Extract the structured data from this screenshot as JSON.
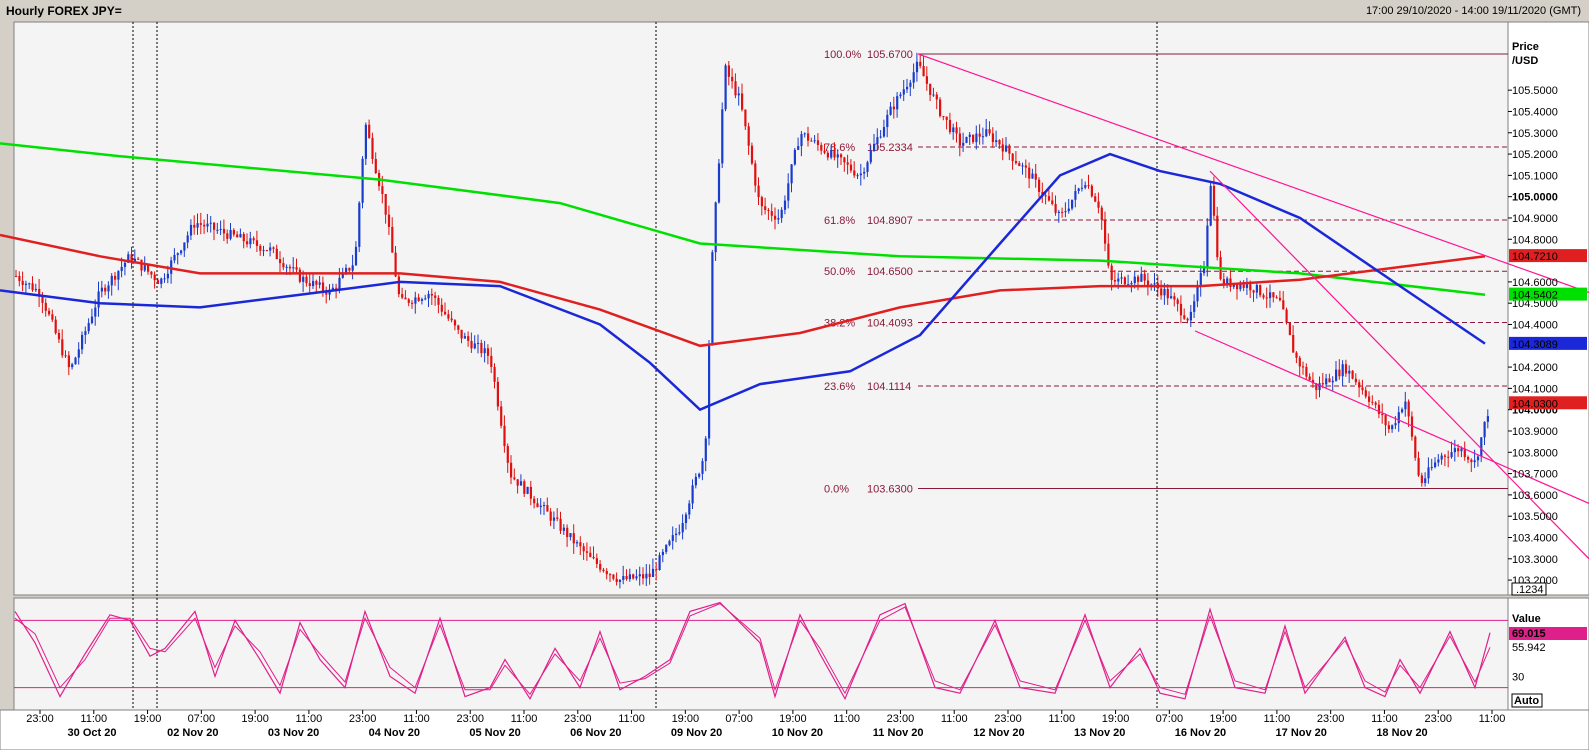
{
  "window": {
    "title": "Hourly FOREX JPY=",
    "range": "17:00 29/10/2020 - 14:00 19/11/2020 (GMT)"
  },
  "colors": {
    "background": "#f4f4f4",
    "up_candle": "#1a3ccc",
    "down_candle": "#e01010",
    "ma_green": "#00e000",
    "ma_red": "#e02020",
    "ma_blue": "#1a28d8",
    "fib": "#8b1a3a",
    "channel": "#ff1493",
    "stoch": "#e0208a"
  },
  "chart_data": [
    {
      "type": "candlestick",
      "axis_label": [
        "Price",
        "/USD"
      ],
      "ylim": [
        103.13,
        105.82
      ],
      "y_ticks": [
        "103.2000",
        "103.3000",
        "103.4000",
        "103.5000",
        "103.6000",
        "103.7000",
        "103.8000",
        "103.9000",
        "104.0000",
        "104.1000",
        "104.2000",
        "104.4000",
        "104.5000",
        "104.6000",
        "104.8000",
        "104.9000",
        "105.0000",
        "105.1000",
        "105.2000",
        "105.3000",
        "105.4000",
        "105.5000"
      ],
      "x_ticks": [
        "23:00",
        "11:00",
        "19:00",
        "07:00",
        "19:00",
        "11:00",
        "23:00",
        "11:00",
        "23:00",
        "11:00",
        "23:00",
        "11:00",
        "19:00",
        "07:00",
        "19:00",
        "11:00",
        "23:00",
        "11:00",
        "23:00",
        "11:00",
        "19:00",
        "07:00",
        "19:00",
        "11:00",
        "23:00",
        "11:00",
        "23:00",
        "11:00"
      ],
      "date_labels": [
        "30 Oct 20",
        "02 Nov 20",
        "03 Nov 20",
        "04 Nov 20",
        "05 Nov 20",
        "06 Nov 20",
        "09 Nov 20",
        "10 Nov 20",
        "11 Nov 20",
        "12 Nov 20",
        "13 Nov 20",
        "16 Nov 20",
        "17 Nov 20",
        "18 Nov 20"
      ],
      "fibonacci": [
        {
          "label": "100.0%",
          "value": "105.6700",
          "y": 105.67
        },
        {
          "label": "78.6%",
          "value": "105.2334",
          "y": 105.2334
        },
        {
          "label": "61.8%",
          "value": "104.8907",
          "y": 104.8907
        },
        {
          "label": "50.0%",
          "value": "104.6500",
          "y": 104.65
        },
        {
          "label": "38.2%",
          "value": "104.4093",
          "y": 104.4093
        },
        {
          "label": "23.6%",
          "value": "104.1114",
          "y": 104.1114
        },
        {
          "label": "0.0%",
          "value": "103.6300",
          "y": 103.63
        }
      ],
      "price_tags": [
        {
          "text": "104.7210",
          "y": 104.721,
          "color": "#e02020"
        },
        {
          "text": "104.5402",
          "y": 104.5402,
          "color": "#00e000"
        },
        {
          "text": "104.3089",
          "y": 104.3089,
          "color": "#1a28d8"
        },
        {
          "text": "104.0300",
          "y": 104.03,
          "color": "#e02020"
        }
      ],
      "scale_button": ".1234",
      "moving_averages": [
        {
          "color": "green",
          "points": [
            [
              0,
              105.25
            ],
            [
              120,
              105.19
            ],
            [
              380,
              105.08
            ],
            [
              560,
              104.97
            ],
            [
              700,
              104.78
            ],
            [
              900,
              104.72
            ],
            [
              1100,
              104.7
            ],
            [
              1300,
              104.64
            ],
            [
              1485,
              104.54
            ]
          ]
        },
        {
          "color": "red",
          "points": [
            [
              0,
              104.82
            ],
            [
              100,
              104.72
            ],
            [
              200,
              104.64
            ],
            [
              300,
              104.64
            ],
            [
              400,
              104.64
            ],
            [
              500,
              104.6
            ],
            [
              600,
              104.47
            ],
            [
              700,
              104.3
            ],
            [
              800,
              104.36
            ],
            [
              900,
              104.48
            ],
            [
              1000,
              104.56
            ],
            [
              1100,
              104.58
            ],
            [
              1200,
              104.58
            ],
            [
              1300,
              104.61
            ],
            [
              1400,
              104.67
            ],
            [
              1485,
              104.72
            ]
          ]
        },
        {
          "color": "blue",
          "points": [
            [
              0,
              104.56
            ],
            [
              100,
              104.5
            ],
            [
              200,
              104.48
            ],
            [
              300,
              104.54
            ],
            [
              400,
              104.6
            ],
            [
              500,
              104.58
            ],
            [
              600,
              104.4
            ],
            [
              650,
              104.22
            ],
            [
              700,
              104.0
            ],
            [
              760,
              104.12
            ],
            [
              850,
              104.18
            ],
            [
              920,
              104.35
            ],
            [
              1000,
              104.78
            ],
            [
              1060,
              105.1
            ],
            [
              1110,
              105.2
            ],
            [
              1160,
              105.12
            ],
            [
              1220,
              105.06
            ],
            [
              1300,
              104.9
            ],
            [
              1400,
              104.58
            ],
            [
              1485,
              104.31
            ]
          ]
        }
      ],
      "channel_lines": [
        {
          "from": [
            918,
            105.67
          ],
          "to": [
            1589,
            104.55
          ]
        },
        {
          "from": [
            1195,
            104.37
          ],
          "to": [
            1589,
            103.56
          ]
        },
        {
          "from": [
            1210,
            105.12
          ],
          "to": [
            1589,
            103.3
          ]
        }
      ],
      "anchors": [
        [
          0,
          104.68
        ],
        [
          40,
          104.55
        ],
        [
          70,
          104.18
        ],
        [
          100,
          104.55
        ],
        [
          130,
          104.72
        ],
        [
          160,
          104.6
        ],
        [
          195,
          104.88
        ],
        [
          230,
          104.82
        ],
        [
          270,
          104.75
        ],
        [
          300,
          104.62
        ],
        [
          330,
          104.55
        ],
        [
          355,
          104.7
        ],
        [
          365,
          105.35
        ],
        [
          385,
          104.95
        ],
        [
          400,
          104.5
        ],
        [
          430,
          104.55
        ],
        [
          460,
          104.35
        ],
        [
          490,
          104.25
        ],
        [
          510,
          103.7
        ],
        [
          540,
          103.55
        ],
        [
          560,
          103.45
        ],
        [
          590,
          103.3
        ],
        [
          620,
          103.2
        ],
        [
          650,
          103.22
        ],
        [
          680,
          103.45
        ],
        [
          705,
          103.8
        ],
        [
          712,
          104.7
        ],
        [
          725,
          105.6
        ],
        [
          740,
          105.45
        ],
        [
          760,
          104.95
        ],
        [
          780,
          104.9
        ],
        [
          800,
          105.3
        ],
        [
          830,
          105.2
        ],
        [
          860,
          105.1
        ],
        [
          890,
          105.4
        ],
        [
          918,
          105.62
        ],
        [
          940,
          105.4
        ],
        [
          960,
          105.25
        ],
        [
          985,
          105.3
        ],
        [
          1000,
          105.25
        ],
        [
          1030,
          105.1
        ],
        [
          1060,
          104.9
        ],
        [
          1085,
          105.08
        ],
        [
          1100,
          104.95
        ],
        [
          1110,
          104.6
        ],
        [
          1140,
          104.62
        ],
        [
          1165,
          104.55
        ],
        [
          1190,
          104.42
        ],
        [
          1205,
          104.7
        ],
        [
          1210,
          105.1
        ],
        [
          1220,
          104.6
        ],
        [
          1250,
          104.58
        ],
        [
          1280,
          104.5
        ],
        [
          1295,
          104.25
        ],
        [
          1315,
          104.1
        ],
        [
          1345,
          104.2
        ],
        [
          1370,
          104.05
        ],
        [
          1390,
          103.9
        ],
        [
          1405,
          104.05
        ],
        [
          1420,
          103.65
        ],
        [
          1440,
          103.78
        ],
        [
          1460,
          103.82
        ],
        [
          1475,
          103.75
        ],
        [
          1490,
          104.03
        ]
      ],
      "dotted_verticals": [
        133,
        157,
        656,
        1157
      ]
    },
    {
      "type": "stochastic",
      "axis_label": "Value",
      "ylim": [
        0,
        100
      ],
      "y_ticks": [
        "30"
      ],
      "upper_band": 80,
      "lower_band": 20,
      "k_value": "69.015",
      "d_value": "55.942",
      "auto_button": "Auto",
      "k_points": [
        [
          15,
          88
        ],
        [
          35,
          60
        ],
        [
          60,
          12
        ],
        [
          85,
          50
        ],
        [
          110,
          85
        ],
        [
          130,
          80
        ],
        [
          150,
          48
        ],
        [
          165,
          55
        ],
        [
          195,
          88
        ],
        [
          215,
          30
        ],
        [
          235,
          80
        ],
        [
          260,
          45
        ],
        [
          280,
          15
        ],
        [
          300,
          78
        ],
        [
          320,
          45
        ],
        [
          345,
          20
        ],
        [
          365,
          88
        ],
        [
          390,
          30
        ],
        [
          415,
          15
        ],
        [
          440,
          82
        ],
        [
          465,
          12
        ],
        [
          490,
          20
        ],
        [
          505,
          45
        ],
        [
          530,
          10
        ],
        [
          555,
          55
        ],
        [
          580,
          20
        ],
        [
          600,
          70
        ],
        [
          620,
          18
        ],
        [
          645,
          30
        ],
        [
          670,
          45
        ],
        [
          690,
          88
        ],
        [
          720,
          96
        ],
        [
          760,
          60
        ],
        [
          775,
          12
        ],
        [
          800,
          85
        ],
        [
          820,
          50
        ],
        [
          845,
          10
        ],
        [
          880,
          85
        ],
        [
          905,
          95
        ],
        [
          935,
          20
        ],
        [
          960,
          15
        ],
        [
          995,
          80
        ],
        [
          1020,
          20
        ],
        [
          1055,
          15
        ],
        [
          1085,
          85
        ],
        [
          1110,
          20
        ],
        [
          1140,
          55
        ],
        [
          1160,
          15
        ],
        [
          1185,
          10
        ],
        [
          1210,
          90
        ],
        [
          1235,
          20
        ],
        [
          1265,
          15
        ],
        [
          1285,
          75
        ],
        [
          1305,
          15
        ],
        [
          1345,
          65
        ],
        [
          1365,
          20
        ],
        [
          1385,
          12
        ],
        [
          1400,
          45
        ],
        [
          1420,
          15
        ],
        [
          1450,
          70
        ],
        [
          1475,
          20
        ],
        [
          1490,
          69
        ]
      ],
      "d_points": [
        [
          15,
          82
        ],
        [
          35,
          68
        ],
        [
          60,
          20
        ],
        [
          85,
          45
        ],
        [
          110,
          82
        ],
        [
          130,
          82
        ],
        [
          150,
          55
        ],
        [
          165,
          52
        ],
        [
          195,
          82
        ],
        [
          215,
          38
        ],
        [
          235,
          75
        ],
        [
          260,
          52
        ],
        [
          280,
          22
        ],
        [
          300,
          72
        ],
        [
          320,
          50
        ],
        [
          345,
          25
        ],
        [
          365,
          82
        ],
        [
          390,
          38
        ],
        [
          415,
          20
        ],
        [
          440,
          76
        ],
        [
          465,
          18
        ],
        [
          490,
          18
        ],
        [
          505,
          40
        ],
        [
          530,
          14
        ],
        [
          555,
          50
        ],
        [
          580,
          26
        ],
        [
          600,
          64
        ],
        [
          620,
          24
        ],
        [
          645,
          28
        ],
        [
          670,
          42
        ],
        [
          690,
          84
        ],
        [
          720,
          95
        ],
        [
          760,
          64
        ],
        [
          775,
          18
        ],
        [
          800,
          80
        ],
        [
          820,
          55
        ],
        [
          845,
          15
        ],
        [
          880,
          80
        ],
        [
          905,
          92
        ],
        [
          935,
          26
        ],
        [
          960,
          18
        ],
        [
          995,
          76
        ],
        [
          1020,
          26
        ],
        [
          1055,
          18
        ],
        [
          1085,
          80
        ],
        [
          1110,
          26
        ],
        [
          1140,
          50
        ],
        [
          1160,
          20
        ],
        [
          1185,
          14
        ],
        [
          1210,
          84
        ],
        [
          1235,
          26
        ],
        [
          1265,
          18
        ],
        [
          1285,
          70
        ],
        [
          1305,
          20
        ],
        [
          1345,
          62
        ],
        [
          1365,
          26
        ],
        [
          1385,
          16
        ],
        [
          1400,
          40
        ],
        [
          1420,
          20
        ],
        [
          1450,
          66
        ],
        [
          1475,
          25
        ],
        [
          1490,
          56
        ]
      ]
    }
  ]
}
